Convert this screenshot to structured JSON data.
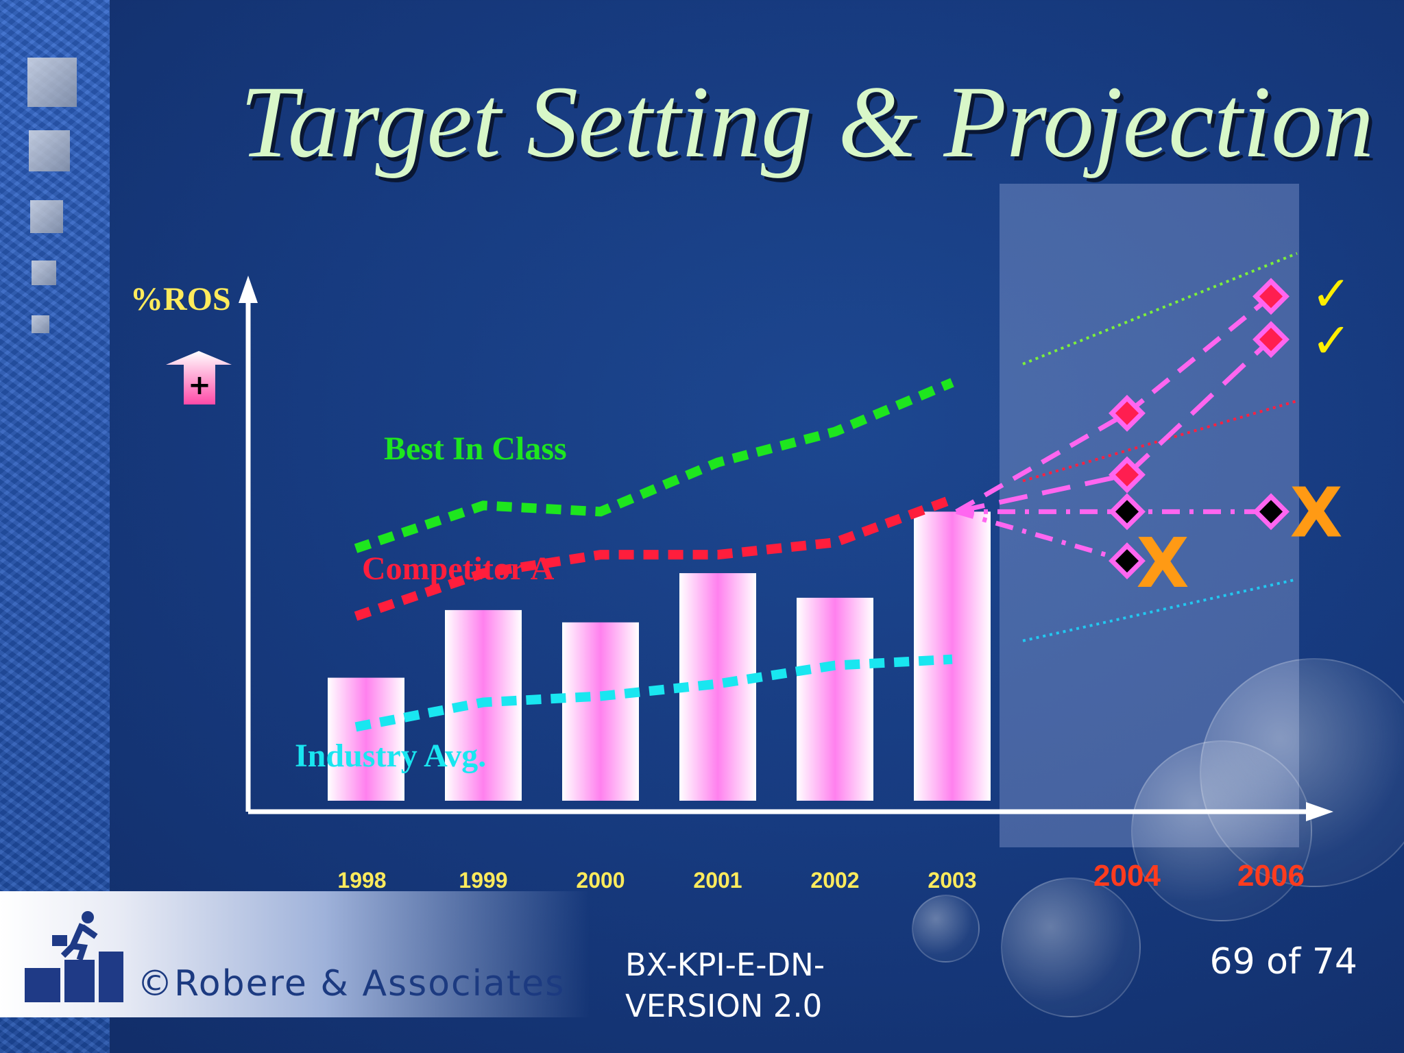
{
  "slide": {
    "title": "Target Setting & Projection",
    "company": "©Robere & Associates",
    "doc_code": "BX-KPI-E-DN-VERSION 2.0",
    "page": "69 of 74"
  },
  "chart_data": {
    "type": "bar",
    "ylabel": "%ROS",
    "ylabel_marker": "+",
    "categories": [
      "1998",
      "1999",
      "2000",
      "2001",
      "2002",
      "2003"
    ],
    "projection_categories": [
      "2004",
      "2006"
    ],
    "values": [
      20,
      31,
      29,
      37,
      33,
      47
    ],
    "ylim": [
      0,
      70
    ],
    "lines": [
      {
        "name": "Best In Class",
        "color": "#1ee61e",
        "values": [
          41,
          48,
          47,
          55,
          60,
          68
        ]
      },
      {
        "name": "Competitor A",
        "color": "#ff1e3c",
        "values": [
          30,
          37,
          40,
          40,
          42,
          49
        ]
      },
      {
        "name": "Industry Avg.",
        "color": "#19e6f0",
        "values": [
          12,
          16,
          17,
          19,
          22,
          23
        ]
      }
    ],
    "projections": [
      {
        "from": "2003",
        "values": {
          "2004": 63,
          "2006": 82
        },
        "color": "#ff1e50",
        "marker": "✓"
      },
      {
        "from": "2003",
        "values": {
          "2004": 53,
          "2006": 75
        },
        "color": "#ff1e50",
        "marker": "✓"
      },
      {
        "from": "2003",
        "values": {
          "2004": 47,
          "2006": 47
        },
        "color": "#000000",
        "marker": "X"
      },
      {
        "from": "2003",
        "values": {
          "2004": 39
        },
        "color": "#000000",
        "marker": "X"
      }
    ],
    "trend_guides": [
      {
        "name": "Best In Class",
        "color": "#7cf03a",
        "values": {
          "2003": 71,
          "2006": 89
        }
      },
      {
        "name": "Competitor A",
        "color": "#ff2040",
        "values": {
          "2003": 52,
          "2006": 65
        }
      },
      {
        "name": "Industry Avg.",
        "color": "#22c8f0",
        "values": {
          "2003": 26,
          "2006": 36
        }
      }
    ],
    "colors": {
      "bar": "#ff80ee",
      "axis": "#ffffff",
      "year_label": "#ffeb5c",
      "projection_year_label": "#ff3c1e",
      "projection_line": "#ff66f0",
      "check": "#ffee00",
      "cross": "#ff9a14"
    }
  }
}
